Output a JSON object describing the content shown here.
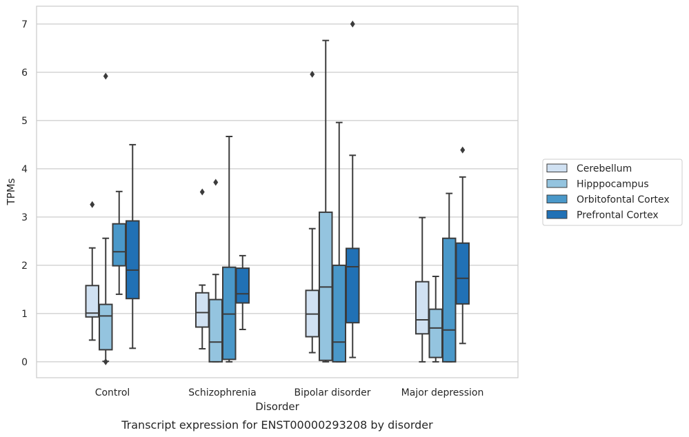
{
  "chart_data": {
    "type": "box",
    "title": "",
    "caption": "Transcript expression for ENST00000293208 by disorder",
    "xlabel": "Disorder",
    "ylabel": "TPMs",
    "ylim": [
      -0.33,
      7.37
    ],
    "yticks": [
      0,
      1,
      2,
      3,
      4,
      5,
      6,
      7
    ],
    "grid": "horizontal",
    "legend_position": "right",
    "categories": [
      "Control",
      "Schizophrenia",
      "Bipolar disorder",
      "Major depression"
    ],
    "series": [
      {
        "name": "Cerebellum",
        "color": "#d0e1f2",
        "boxes": [
          {
            "whisker_low": 0.45,
            "q1": 0.93,
            "median": 1.01,
            "q3": 1.58,
            "whisker_high": 2.36,
            "outliers": [
              3.26
            ]
          },
          {
            "whisker_low": 0.27,
            "q1": 0.72,
            "median": 1.02,
            "q3": 1.43,
            "whisker_high": 1.59,
            "outliers": [
              3.52
            ]
          },
          {
            "whisker_low": 0.19,
            "q1": 0.52,
            "median": 0.99,
            "q3": 1.48,
            "whisker_high": 2.76,
            "outliers": [
              5.96
            ]
          },
          {
            "whisker_low": 0.0,
            "q1": 0.58,
            "median": 0.87,
            "q3": 1.66,
            "whisker_high": 2.99,
            "outliers": []
          }
        ]
      },
      {
        "name": "Hipppocampus",
        "color": "#94c4df",
        "boxes": [
          {
            "whisker_low": 0.01,
            "q1": 0.25,
            "median": 0.95,
            "q3": 1.19,
            "whisker_high": 2.56,
            "outliers": [
              5.92,
              0.0
            ]
          },
          {
            "whisker_low": 0.0,
            "q1": 0.0,
            "median": 0.41,
            "q3": 1.29,
            "whisker_high": 1.81,
            "outliers": [
              3.72
            ]
          },
          {
            "whisker_low": 0.0,
            "q1": 0.03,
            "median": 1.55,
            "q3": 3.1,
            "whisker_high": 6.66,
            "outliers": []
          },
          {
            "whisker_low": 0.0,
            "q1": 0.09,
            "median": 0.7,
            "q3": 1.09,
            "whisker_high": 1.77,
            "outliers": []
          }
        ]
      },
      {
        "name": "Orbitofontal Cortex",
        "color": "#4a98c9",
        "boxes": [
          {
            "whisker_low": 1.4,
            "q1": 1.99,
            "median": 2.28,
            "q3": 2.86,
            "whisker_high": 3.53,
            "outliers": []
          },
          {
            "whisker_low": 0.0,
            "q1": 0.05,
            "median": 0.99,
            "q3": 1.96,
            "whisker_high": 4.67,
            "outliers": []
          },
          {
            "whisker_low": 0.0,
            "q1": 0.0,
            "median": 0.41,
            "q3": 2.0,
            "whisker_high": 4.96,
            "outliers": []
          },
          {
            "whisker_low": 0.0,
            "q1": 0.0,
            "median": 0.66,
            "q3": 2.56,
            "whisker_high": 3.49,
            "outliers": []
          }
        ]
      },
      {
        "name": "Prefrontal Cortex",
        "color": "#2171b5",
        "boxes": [
          {
            "whisker_low": 0.28,
            "q1": 1.31,
            "median": 1.9,
            "q3": 2.92,
            "whisker_high": 4.5,
            "outliers": []
          },
          {
            "whisker_low": 0.67,
            "q1": 1.22,
            "median": 1.41,
            "q3": 1.94,
            "whisker_high": 2.2,
            "outliers": []
          },
          {
            "whisker_low": 0.09,
            "q1": 0.81,
            "median": 1.97,
            "q3": 2.35,
            "whisker_high": 4.28,
            "outliers": [
              7.0
            ]
          },
          {
            "whisker_low": 0.38,
            "q1": 1.2,
            "median": 1.73,
            "q3": 2.46,
            "whisker_high": 3.83,
            "outliers": [
              4.39
            ]
          }
        ]
      }
    ]
  },
  "style": {
    "grid_color": "#cccccc",
    "spine_color": "#cccccc",
    "line_color": "#3b3b3b"
  }
}
